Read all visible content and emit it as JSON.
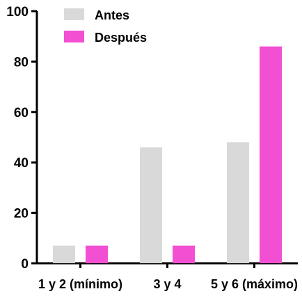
{
  "chart_data": {
    "type": "bar",
    "title": "",
    "xlabel": "",
    "ylabel": "",
    "categories": [
      "1 y 2 (mínimo)",
      "3 y 4",
      "5 y 6 (máximo)"
    ],
    "series": [
      {
        "name": "Antes",
        "values": [
          7,
          46,
          48
        ],
        "color": "#d9d9d9"
      },
      {
        "name": "Después",
        "values": [
          7,
          7,
          86
        ],
        "color": "#f24fd3"
      }
    ],
    "ylim": [
      0,
      100
    ],
    "yticks": [
      0,
      20,
      40,
      60,
      80,
      100
    ],
    "ytick_labels": [
      "0",
      "20",
      "40",
      "60",
      "80",
      "100"
    ],
    "grid": false,
    "legend_position": "top-left"
  }
}
